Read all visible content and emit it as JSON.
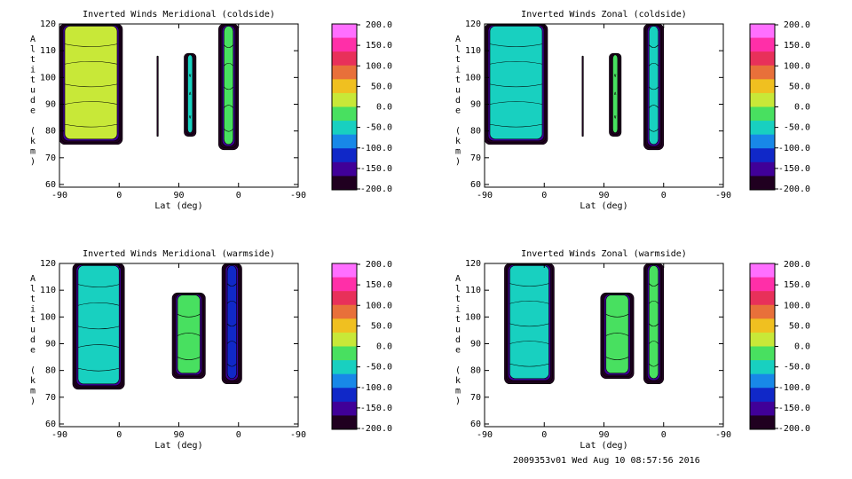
{
  "chart_data": [
    {
      "type": "heatmap",
      "title": "Inverted Winds Meridional (coldside)",
      "xlabel": "Lat (deg)",
      "ylabel": "Altitude (km)",
      "x_ticks": [
        "-90",
        "0",
        "90",
        "0",
        "-90"
      ],
      "y_ticks": [
        "60",
        "70",
        "80",
        "90",
        "100",
        "110",
        "120"
      ],
      "ylim": [
        59,
        120
      ],
      "colorbar_ticks": [
        "200.0",
        "150.0",
        "100.0",
        "50.0",
        "0.0",
        "-50.0",
        "-100.0",
        "-150.0",
        "-200.0"
      ],
      "clim": [
        -200,
        200
      ],
      "regions": [
        {
          "x_range": [
            -90,
            5
          ],
          "alt_range": [
            75,
            120
          ],
          "mean_value": 5
        },
        {
          "x_range": [
            57,
            59
          ],
          "alt_range": [
            78,
            108
          ],
          "mean_value": -250
        },
        {
          "x_range": [
            98,
            116
          ],
          "alt_range": [
            78,
            109
          ],
          "mean_value": -40
        },
        {
          "x_range": [
            150,
            180
          ],
          "alt_range": [
            73,
            120
          ],
          "mean_value": -10
        }
      ]
    },
    {
      "type": "heatmap",
      "title": "Inverted Winds Zonal (coldside)",
      "xlabel": "Lat (deg)",
      "ylabel": "Altitude (km)",
      "x_ticks": [
        "-90",
        "0",
        "90",
        "0",
        "-90"
      ],
      "y_ticks": [
        "60",
        "70",
        "80",
        "90",
        "100",
        "110",
        "120"
      ],
      "ylim": [
        59,
        120
      ],
      "colorbar_ticks": [
        "200.0",
        "150.0",
        "100.0",
        "50.0",
        "0.0",
        "-50.0",
        "-100.0",
        "-150.0",
        "-200.0"
      ],
      "clim": [
        -200,
        200
      ],
      "regions": [
        {
          "x_range": [
            -90,
            5
          ],
          "alt_range": [
            75,
            120
          ],
          "mean_value": -60
        },
        {
          "x_range": [
            57,
            59
          ],
          "alt_range": [
            78,
            108
          ],
          "mean_value": -250
        },
        {
          "x_range": [
            98,
            116
          ],
          "alt_range": [
            78,
            109
          ],
          "mean_value": -20
        },
        {
          "x_range": [
            150,
            180
          ],
          "alt_range": [
            73,
            120
          ],
          "mean_value": -40
        }
      ]
    },
    {
      "type": "heatmap",
      "title": "Inverted Winds Meridional (warmside)",
      "xlabel": "Lat (deg)",
      "ylabel": "Altitude (km)",
      "x_ticks": [
        "-90",
        "0",
        "90",
        "0",
        "-90"
      ],
      "y_ticks": [
        "60",
        "70",
        "80",
        "90",
        "100",
        "110",
        "120"
      ],
      "ylim": [
        59,
        120
      ],
      "colorbar_ticks": [
        "200.0",
        "150.0",
        "100.0",
        "50.0",
        "0.0",
        "-50.0",
        "-100.0",
        "-150.0",
        "-200.0"
      ],
      "clim": [
        -200,
        200
      ],
      "regions": [
        {
          "x_range": [
            -70,
            8
          ],
          "alt_range": [
            73,
            120
          ],
          "mean_value": -40
        },
        {
          "x_range": [
            80,
            130
          ],
          "alt_range": [
            77,
            109
          ],
          "mean_value": -30
        },
        {
          "x_range": [
            155,
            185
          ],
          "alt_range": [
            75,
            120
          ],
          "mean_value": -110
        }
      ]
    },
    {
      "type": "heatmap",
      "title": "Inverted Winds Zonal (warmside)",
      "xlabel": "Lat (deg)",
      "ylabel": "Altitude (km)",
      "x_ticks": [
        "-90",
        "0",
        "90",
        "0",
        "-90"
      ],
      "y_ticks": [
        "60",
        "70",
        "80",
        "90",
        "100",
        "110",
        "120"
      ],
      "ylim": [
        59,
        120
      ],
      "colorbar_ticks": [
        "200.0",
        "150.0",
        "100.0",
        "50.0",
        "0.0",
        "-50.0",
        "-100.0",
        "-150.0",
        "-200.0"
      ],
      "clim": [
        -200,
        200
      ],
      "regions": [
        {
          "x_range": [
            -60,
            15
          ],
          "alt_range": [
            75,
            120
          ],
          "mean_value": -50
        },
        {
          "x_range": [
            85,
            135
          ],
          "alt_range": [
            77,
            109
          ],
          "mean_value": -30
        },
        {
          "x_range": [
            150,
            180
          ],
          "alt_range": [
            75,
            120
          ],
          "mean_value": -30
        }
      ]
    }
  ],
  "footer": {
    "stamp": "2009353v01 Wed Aug 10 08:57:56 2016"
  },
  "colormap": [
    "#ff6fff",
    "#ff2fa8",
    "#e8305a",
    "#e8703a",
    "#f0c020",
    "#c8e838",
    "#48e060",
    "#18d0c0",
    "#1888e8",
    "#1028c8",
    "#400098",
    "#200020"
  ]
}
